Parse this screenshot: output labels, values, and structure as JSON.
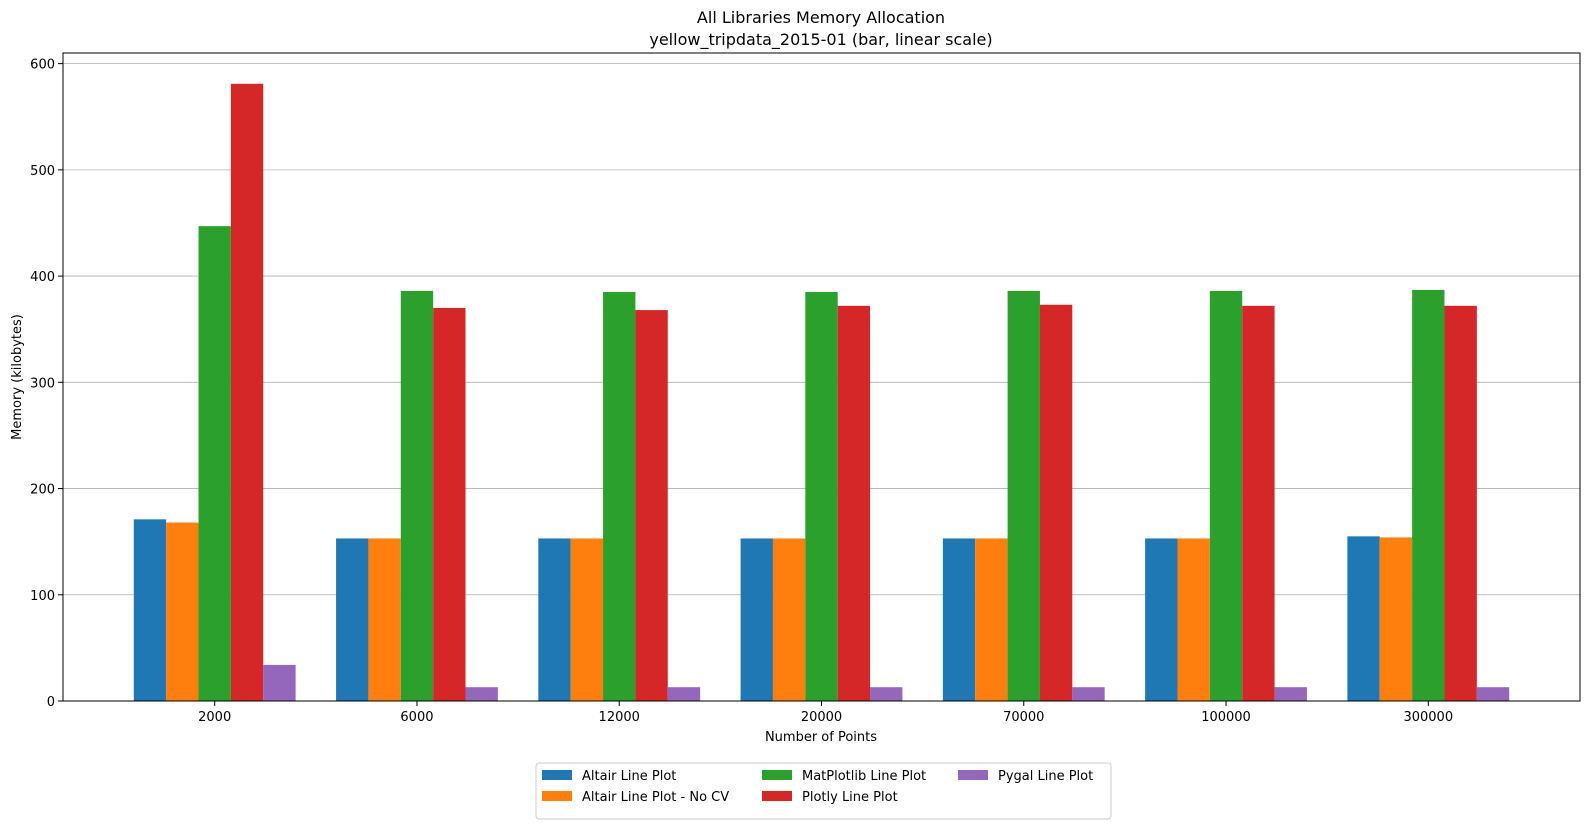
{
  "chart_data": {
    "type": "bar",
    "title": "All Libraries Memory Allocation",
    "subtitle": "yellow_tripdata_2015-01 (bar, linear scale)",
    "xlabel": "Number of Points",
    "ylabel": "Memory (kilobytes)",
    "ylim": [
      0,
      610
    ],
    "yticks": [
      0,
      100,
      200,
      300,
      400,
      500,
      600
    ],
    "grid": "horizontal",
    "legend_position": "bottom-center",
    "categories": [
      "2000",
      "6000",
      "12000",
      "20000",
      "70000",
      "100000",
      "300000"
    ],
    "series": [
      {
        "name": "Altair Line Plot",
        "color": "#1f77b4",
        "values": [
          171,
          153,
          153,
          153,
          153,
          153,
          155
        ]
      },
      {
        "name": "Altair Line Plot - No CV",
        "color": "#ff7f0e",
        "values": [
          168,
          153,
          153,
          153,
          153,
          153,
          154
        ]
      },
      {
        "name": "MatPlotlib Line Plot",
        "color": "#2ca02c",
        "values": [
          447,
          386,
          385,
          385,
          386,
          386,
          387
        ]
      },
      {
        "name": "Plotly Line Plot",
        "color": "#d62728",
        "values": [
          581,
          370,
          368,
          372,
          373,
          372,
          372
        ]
      },
      {
        "name": "Pygal Line Plot",
        "color": "#9467bd",
        "values": [
          34,
          13,
          13,
          13,
          13,
          13,
          13
        ]
      }
    ]
  }
}
